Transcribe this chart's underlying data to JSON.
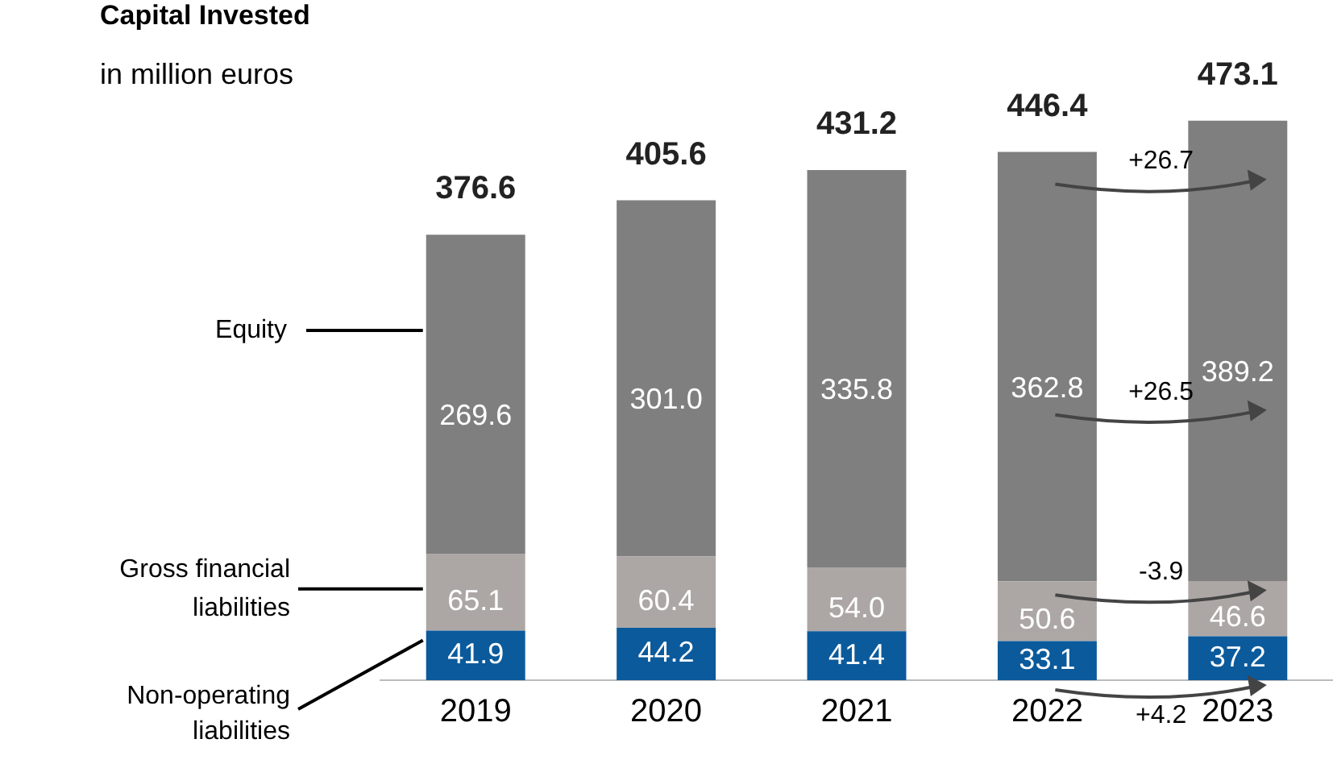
{
  "chart_data": {
    "type": "bar",
    "title": "Capital Invested",
    "subtitle": "in million euros",
    "stacked": true,
    "categories": [
      "2019",
      "2020",
      "2021",
      "2022",
      "2023"
    ],
    "series": [
      {
        "name": "Non-operating liabilities",
        "color": "#0b5a9c",
        "values": [
          41.9,
          44.2,
          41.4,
          33.1,
          37.2
        ],
        "value_labels": [
          "41.9",
          "44.2",
          "41.4",
          "33.1",
          "37.2"
        ]
      },
      {
        "name": "Gross financial liabilities",
        "color": "#aca7a5",
        "values": [
          65.1,
          60.4,
          54.0,
          50.6,
          46.6
        ],
        "value_labels": [
          "65.1",
          "60.4",
          "54.0",
          "50.6",
          "46.6"
        ]
      },
      {
        "name": "Equity",
        "color": "#7f7f7f",
        "values": [
          269.6,
          301.0,
          335.8,
          362.8,
          389.2
        ],
        "value_labels": [
          "269.6",
          "301.0",
          "335.8",
          "362.8",
          "389.2"
        ]
      }
    ],
    "totals": [
      "376.6",
      "405.6",
      "431.2",
      "446.4",
      "473.1"
    ],
    "annotations": [
      "+26.7",
      "+26.5",
      "-3.9",
      "+4.2"
    ],
    "legend": false
  }
}
